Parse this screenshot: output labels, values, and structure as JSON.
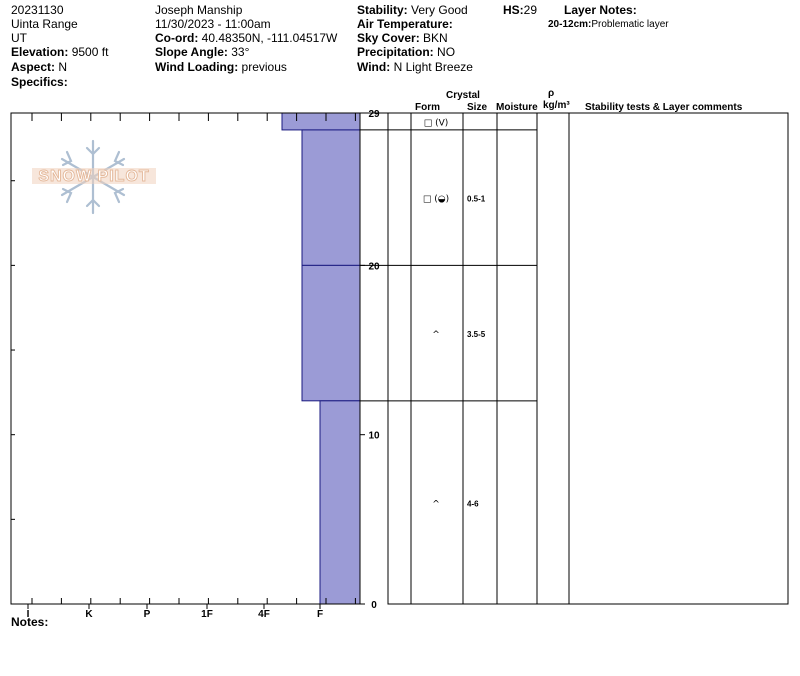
{
  "header": {
    "date": "20231130",
    "range": "Uinta Range",
    "state": "UT",
    "elevation_label": "Elevation:",
    "elevation_value": "9500 ft",
    "aspect_label": "Aspect:",
    "aspect_value": "N",
    "specifics_label": "Specifics:",
    "observer": "Joseph Manship",
    "datetime": "11/30/2023 - 11:00am",
    "coord_label": "Co-ord:",
    "coord_value": "40.48350N, -111.04517W",
    "slope_label": "Slope Angle:",
    "slope_value": "33°",
    "wind_loading_label": "Wind Loading:",
    "wind_loading_value": "previous",
    "stability_label": "Stability:",
    "stability_value": "Very Good",
    "air_temp_label": "Air Temperature:",
    "air_temp_value": "",
    "sky_label": "Sky Cover:",
    "sky_value": "BKN",
    "precip_label": "Precipitation:",
    "precip_value": "NO",
    "wind_label": "Wind:",
    "wind_value": "N Light Breeze",
    "hs_label": "HS:",
    "hs_value": "29",
    "layer_notes_label": "Layer Notes:",
    "layer_note_range": "20-12cm:",
    "layer_note_text": "Problematic layer"
  },
  "logo_text": "SNOW PILOT",
  "notes_label": "Notes:",
  "columns": {
    "crystal": "Crystal",
    "form": "Form",
    "size": "Size",
    "moisture": "Moisture",
    "rho": "ρ",
    "density_unit": "kg/m³",
    "stability": "Stability tests & Layer comments"
  },
  "colors": {
    "layer_fill": "#9b9bd6",
    "layer_stroke": "#1a1a80"
  },
  "chart_data": {
    "type": "bar",
    "y_axis": {
      "min": 0,
      "max": 29,
      "ticks": [
        0,
        10,
        20,
        29
      ]
    },
    "hardness_scale": [
      "I",
      "K",
      "P",
      "1F",
      "4F",
      "F"
    ],
    "layers": [
      {
        "top": 29,
        "bottom": 28,
        "hardness": "4F-"
      },
      {
        "top": 28,
        "bottom": 20,
        "hardness": "F+"
      },
      {
        "top": 20,
        "bottom": 12,
        "hardness": "F+"
      },
      {
        "top": 12,
        "bottom": 0,
        "hardness": "F"
      }
    ],
    "crystal_rows": [
      {
        "form": "□ (V)",
        "size": ""
      },
      {
        "form": "□ (◒)",
        "size": "0.5-1"
      },
      {
        "form": "^",
        "size": "3.5-5"
      },
      {
        "form": "^",
        "size": "4-6"
      }
    ]
  }
}
